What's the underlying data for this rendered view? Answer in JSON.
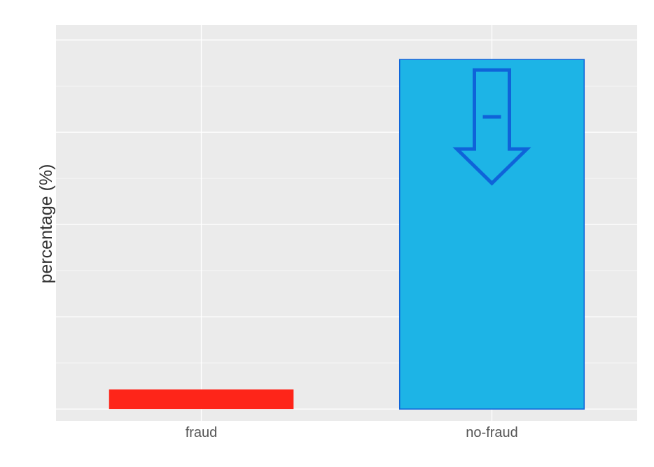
{
  "chart_data": {
    "type": "bar",
    "categories": [
      "fraud",
      "no-fraud"
    ],
    "values": [
      5.3,
      94.7
    ],
    "title": "",
    "xlabel": "",
    "ylabel": "percentage (%)",
    "ylim": [
      -3.2,
      104
    ],
    "grid": true,
    "colors": {
      "fraud": "#fe2519",
      "no-fraud": "#1db4e6",
      "no-fraud-border": "#0f63d9",
      "panel": "#ebebeb",
      "gridline": "#ffffff"
    },
    "annotations": [
      {
        "type": "down-arrow-icon",
        "category": "no-fraud",
        "label": "-"
      }
    ]
  }
}
